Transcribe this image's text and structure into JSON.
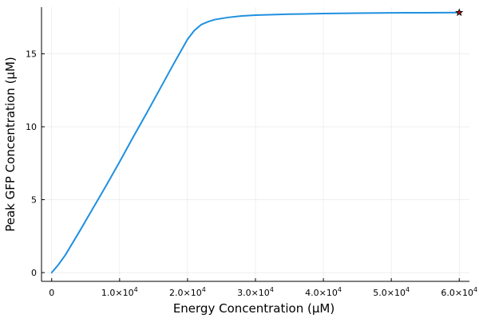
{
  "chart_data": {
    "type": "line",
    "title": "",
    "xlabel": "Energy Concentration (μM)",
    "ylabel": "Peak GFP Concentration (μM)",
    "xlim": [
      -1500,
      61500
    ],
    "ylim": [
      -0.6,
      18.2
    ],
    "grid": true,
    "legend": "none",
    "x_ticks": [
      {
        "value": 0,
        "mantissa": "0",
        "exponent": ""
      },
      {
        "value": 10000,
        "mantissa": "1.0×10",
        "exponent": "4"
      },
      {
        "value": 20000,
        "mantissa": "2.0×10",
        "exponent": "4"
      },
      {
        "value": 30000,
        "mantissa": "3.0×10",
        "exponent": "4"
      },
      {
        "value": 40000,
        "mantissa": "4.0×10",
        "exponent": "4"
      },
      {
        "value": 50000,
        "mantissa": "5.0×10",
        "exponent": "4"
      },
      {
        "value": 60000,
        "mantissa": "6.0×10",
        "exponent": "4"
      }
    ],
    "y_ticks": [
      {
        "value": 0,
        "label": "0"
      },
      {
        "value": 5,
        "label": "5"
      },
      {
        "value": 10,
        "label": "10"
      },
      {
        "value": 15,
        "label": "15"
      }
    ],
    "series": [
      {
        "color": "#1e90e0",
        "x": [
          0,
          1000,
          2000,
          4000,
          6000,
          8000,
          10000,
          12000,
          14000,
          16000,
          18000,
          20000,
          21000,
          22000,
          23000,
          24000,
          26000,
          28000,
          30000,
          35000,
          40000,
          45000,
          50000,
          55000,
          60000
        ],
        "y": [
          0,
          0.55,
          1.2,
          2.75,
          4.35,
          5.95,
          7.6,
          9.3,
          10.95,
          12.65,
          14.35,
          16.0,
          16.6,
          17.0,
          17.2,
          17.35,
          17.5,
          17.6,
          17.65,
          17.72,
          17.76,
          17.79,
          17.81,
          17.82,
          17.83
        ]
      }
    ],
    "markers": [
      {
        "x": 60000,
        "y": 17.83,
        "shape": "star",
        "color": "#b01010"
      }
    ]
  }
}
